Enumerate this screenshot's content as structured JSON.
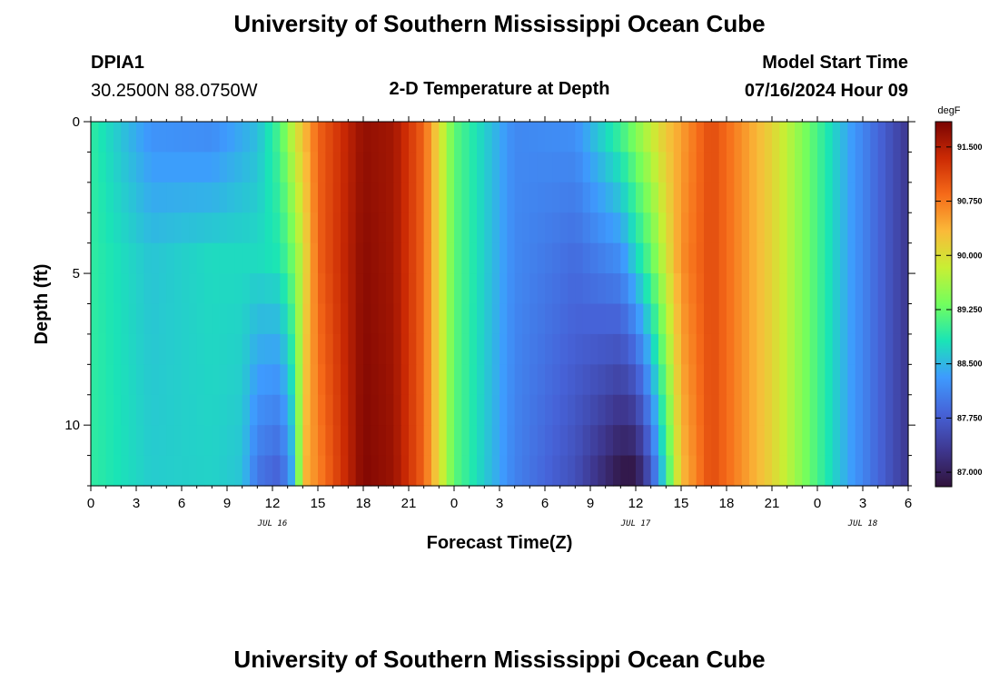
{
  "header": {
    "title": "University of Southern Mississippi Ocean Cube",
    "station_id": "DPIA1",
    "station_coords": "30.2500N  88.0750W",
    "subtitle": "2-D Temperature at Depth",
    "model_start_label": "Model Start Time",
    "model_start_value": "07/16/2024 Hour 09"
  },
  "footer": {
    "title": "University of Southern Mississippi Ocean Cube"
  },
  "colorbar": {
    "unit": "degF",
    "min": 86.8,
    "max": 91.85,
    "ticks": [
      "87.000",
      "87.750",
      "88.500",
      "89.250",
      "90.000",
      "90.750",
      "91.500"
    ],
    "colors": [
      "#30123b",
      "#3e378f",
      "#4662d7",
      "#3e9bfe",
      "#1ae4b6",
      "#72fe5e",
      "#c8ef34",
      "#faba39",
      "#f66b19",
      "#cb2a04",
      "#7a0403"
    ]
  },
  "chart_data": {
    "type": "heatmap",
    "title": "2-D Temperature at Depth",
    "xlabel": "Forecast Time(Z)",
    "ylabel": "Depth (ft)",
    "x_tick_labels": [
      "0",
      "3",
      "6",
      "9",
      "12",
      "15",
      "18",
      "21",
      "0",
      "3",
      "6",
      "9",
      "12",
      "15",
      "18",
      "21",
      "0",
      "3",
      "6"
    ],
    "y_tick_labels": [
      "0",
      "5",
      "10"
    ],
    "date_labels": [
      {
        "label": "JUL 16",
        "forecast_hour": 12
      },
      {
        "label": "JUL 17",
        "forecast_hour": 36
      },
      {
        "label": "JUL 18",
        "forecast_hour": 51
      }
    ],
    "xlim": [
      0,
      54
    ],
    "ylim": [
      0,
      12
    ],
    "y_reversed": true,
    "z_unit": "degF",
    "z_range": [
      86.8,
      91.85
    ],
    "cell_hours": 0.5,
    "depths": [
      0.5,
      1.5,
      2.5,
      3.5,
      4.5,
      5.5,
      6.5,
      7.5,
      8.5,
      9.5,
      10.5,
      11.5
    ],
    "surface_profile": [
      [
        0,
        88.95
      ],
      [
        0.5,
        88.85
      ],
      [
        1,
        88.7
      ],
      [
        2,
        88.55
      ],
      [
        3,
        88.4
      ],
      [
        4,
        88.3
      ],
      [
        5,
        88.25
      ],
      [
        6,
        88.2
      ],
      [
        7,
        88.2
      ],
      [
        8,
        88.25
      ],
      [
        9,
        88.35
      ],
      [
        10,
        88.6
      ],
      [
        11,
        88.95
      ],
      [
        12,
        89.3
      ],
      [
        13,
        89.7
      ],
      [
        13.5,
        90.0
      ],
      [
        14,
        90.4
      ],
      [
        15,
        90.9
      ],
      [
        16,
        91.3
      ],
      [
        17,
        91.6
      ],
      [
        18,
        91.75
      ],
      [
        19,
        91.75
      ],
      [
        20,
        91.65
      ],
      [
        21,
        91.4
      ],
      [
        22,
        91.0
      ],
      [
        22.5,
        90.6
      ],
      [
        23,
        90.1
      ],
      [
        23.5,
        89.6
      ],
      [
        24,
        89.2
      ],
      [
        24.5,
        88.95
      ],
      [
        25,
        88.7
      ],
      [
        26,
        88.5
      ],
      [
        27,
        88.35
      ],
      [
        28,
        88.25
      ],
      [
        29,
        88.2
      ],
      [
        30,
        88.15
      ],
      [
        31,
        88.1
      ],
      [
        32,
        88.2
      ],
      [
        33,
        88.4
      ],
      [
        34,
        88.7
      ],
      [
        35,
        89.0
      ],
      [
        36,
        89.3
      ],
      [
        37,
        89.6
      ],
      [
        38,
        90.1
      ],
      [
        39,
        90.7
      ],
      [
        40,
        91.05
      ],
      [
        41,
        91.2
      ],
      [
        42,
        91.1
      ],
      [
        43,
        90.9
      ],
      [
        44,
        90.6
      ],
      [
        45,
        90.2
      ],
      [
        46,
        89.7
      ],
      [
        47,
        89.3
      ],
      [
        48,
        88.95
      ],
      [
        49,
        88.65
      ],
      [
        50,
        88.4
      ],
      [
        51,
        88.1
      ],
      [
        52,
        87.8
      ],
      [
        53,
        87.5
      ],
      [
        54,
        87.3
      ]
    ],
    "depth_profiles": [
      {
        "depth": 0.5,
        "values": [
          [
            0,
            88.95
          ],
          [
            4,
            88.25
          ],
          [
            8,
            88.2
          ],
          [
            11,
            88.55
          ],
          [
            12.5,
            89.1
          ],
          [
            13.5,
            89.9
          ],
          [
            15,
            90.9
          ],
          [
            18,
            91.7
          ],
          [
            20,
            91.6
          ],
          [
            22,
            90.9
          ],
          [
            24,
            89.2
          ],
          [
            28,
            88.15
          ],
          [
            32,
            88.2
          ],
          [
            35,
            89.0
          ],
          [
            38,
            90.2
          ],
          [
            41,
            91.1
          ],
          [
            45,
            90.1
          ],
          [
            50,
            88.4
          ],
          [
            54,
            87.3
          ]
        ]
      },
      {
        "depth": 4.5,
        "values": [
          [
            0,
            88.95
          ],
          [
            4,
            88.6
          ],
          [
            8,
            88.75
          ],
          [
            11,
            88.75
          ],
          [
            12.5,
            88.85
          ],
          [
            13.5,
            89.4
          ],
          [
            15,
            90.9
          ],
          [
            18,
            91.75
          ],
          [
            20,
            91.6
          ],
          [
            22,
            90.9
          ],
          [
            24,
            89.2
          ],
          [
            28,
            88.15
          ],
          [
            32,
            87.9
          ],
          [
            35,
            88.2
          ],
          [
            37,
            89.2
          ],
          [
            39,
            90.6
          ],
          [
            41,
            91.1
          ],
          [
            45,
            90.1
          ],
          [
            50,
            88.4
          ],
          [
            54,
            87.3
          ]
        ]
      },
      {
        "depth": 11.5,
        "values": [
          [
            0,
            88.95
          ],
          [
            4,
            88.65
          ],
          [
            8,
            88.7
          ],
          [
            10,
            88.6
          ],
          [
            11,
            88.0
          ],
          [
            12.5,
            87.8
          ],
          [
            13.5,
            88.6
          ],
          [
            14,
            90.3
          ],
          [
            18,
            91.8
          ],
          [
            20,
            91.65
          ],
          [
            22,
            90.9
          ],
          [
            24,
            89.2
          ],
          [
            28,
            88.1
          ],
          [
            32,
            87.6
          ],
          [
            35,
            86.9
          ],
          [
            36,
            86.9
          ],
          [
            37,
            87.7
          ],
          [
            38,
            88.9
          ],
          [
            39,
            90.3
          ],
          [
            41,
            91.1
          ],
          [
            45,
            90.1
          ],
          [
            50,
            88.4
          ],
          [
            54,
            87.3
          ]
        ]
      }
    ]
  }
}
